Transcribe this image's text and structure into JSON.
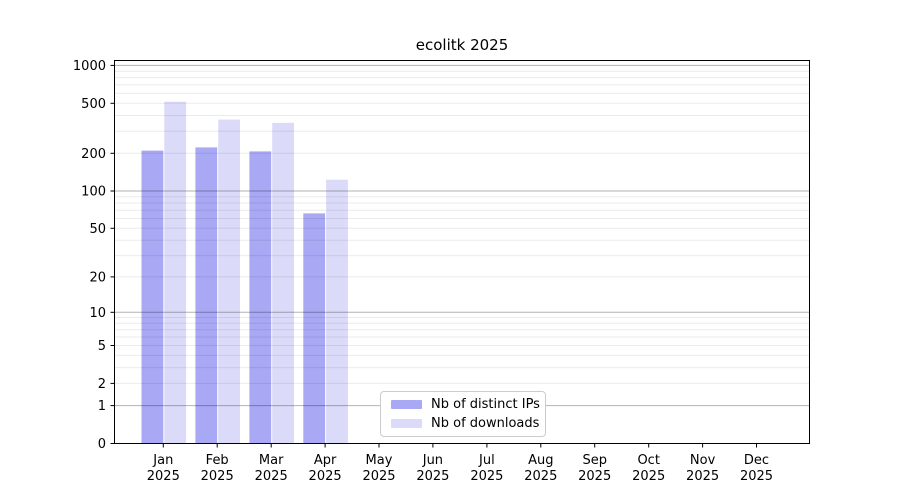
{
  "chart_data": {
    "type": "bar",
    "title": "ecolitk 2025",
    "categories": [
      {
        "month": "Jan",
        "year": "2025"
      },
      {
        "month": "Feb",
        "year": "2025"
      },
      {
        "month": "Mar",
        "year": "2025"
      },
      {
        "month": "Apr",
        "year": "2025"
      },
      {
        "month": "May",
        "year": "2025"
      },
      {
        "month": "Jun",
        "year": "2025"
      },
      {
        "month": "Jul",
        "year": "2025"
      },
      {
        "month": "Aug",
        "year": "2025"
      },
      {
        "month": "Sep",
        "year": "2025"
      },
      {
        "month": "Oct",
        "year": "2025"
      },
      {
        "month": "Nov",
        "year": "2025"
      },
      {
        "month": "Dec",
        "year": "2025"
      }
    ],
    "series": [
      {
        "name": "Nb of distinct IPs",
        "color": "#a8a8f4",
        "values": [
          210,
          223,
          207,
          66,
          null,
          null,
          null,
          null,
          null,
          null,
          null,
          null
        ]
      },
      {
        "name": "Nb of downloads",
        "color": "#dbdbf9",
        "values": [
          515,
          371,
          350,
          123,
          null,
          null,
          null,
          null,
          null,
          null,
          null,
          null
        ]
      }
    ],
    "yticks": [
      0,
      1,
      2,
      5,
      10,
      20,
      50,
      100,
      200,
      500,
      1000
    ],
    "yscale": "log10(1+y)",
    "ylim": [
      0,
      1100
    ],
    "grid": true,
    "legend_position": "bottom-center"
  }
}
